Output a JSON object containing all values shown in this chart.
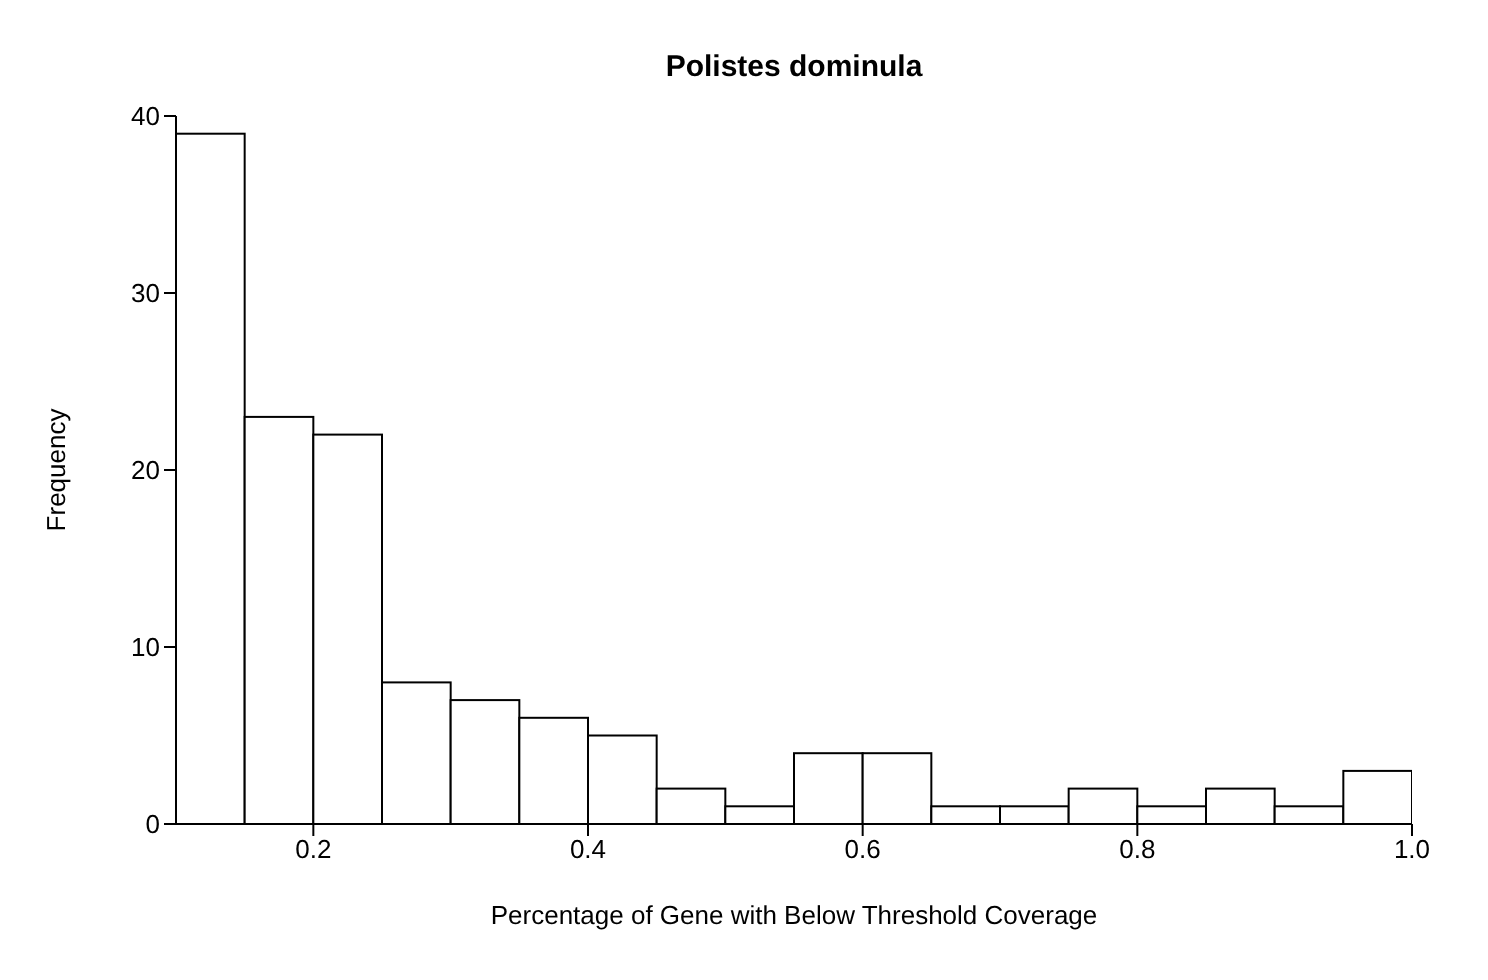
{
  "chart_data": {
    "type": "histogram",
    "title": "Polistes dominula",
    "xlabel": "Percentage of Gene with Below Threshold Coverage",
    "ylabel": "Frequency",
    "bins": [
      0.1,
      0.15,
      0.2,
      0.25,
      0.3,
      0.35,
      0.4,
      0.45,
      0.5,
      0.55,
      0.6,
      0.65,
      0.7,
      0.75,
      0.8,
      0.85,
      0.9,
      0.95,
      1.0
    ],
    "values": [
      39,
      23,
      22,
      8,
      7,
      6,
      5,
      2,
      1,
      4,
      4,
      1,
      1,
      2,
      1,
      2,
      1,
      3
    ],
    "color": "#ffffff",
    "xlim": [
      0.1,
      1.0
    ],
    "xticks": [
      0.2,
      0.4,
      0.6,
      0.8,
      {
        "value": 1,
        "label": "1.0"
      }
    ],
    "ylim": [
      0,
      40
    ],
    "yticks": [
      0,
      10,
      20,
      30,
      40
    ],
    "grid": false
  }
}
